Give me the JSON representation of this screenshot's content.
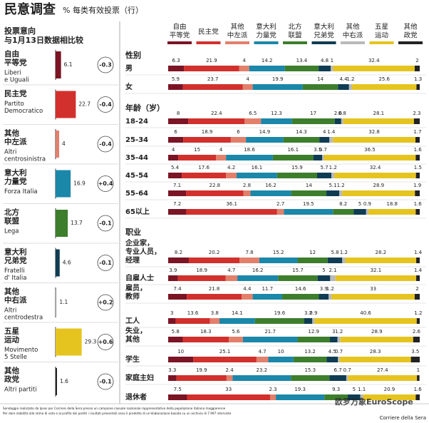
{
  "title": "民意调查",
  "subtitle": "% 每类有效投票（行）",
  "chart_data": [
    {
      "type": "hbar",
      "title": [
        "投票意向",
        "与1月13日数据相比较"
      ],
      "categories": [
        [
          "自由",
          "平等党"
        ],
        [
          "民主党"
        ],
        [
          "其他",
          "中左派"
        ],
        [
          "意大利",
          "力量党"
        ],
        [
          "北方",
          "联盟"
        ],
        [
          "意大利",
          "兄弟党"
        ],
        [
          "其他",
          "中右派"
        ],
        [
          "五星",
          "运动"
        ],
        [
          "其他",
          "政党"
        ]
      ],
      "subtitles": [
        [
          "Liberi",
          "e Uguali"
        ],
        [
          "Partito",
          "Democratico"
        ],
        [
          "Altri",
          "centrosinistra"
        ],
        [
          "Forza Italia"
        ],
        [
          "Lega"
        ],
        [
          "Fratelli",
          "d' Italia"
        ],
        [
          "Altri",
          "centrodestra"
        ],
        [
          "Movimento",
          "5 Stelle"
        ],
        [
          "Altri partiti"
        ]
      ],
      "colors": [
        "#7b1424",
        "#d2302c",
        "#e2806c",
        "#1b87a9",
        "#3d7e2c",
        "#0f3c53",
        "#b9b9b9",
        "#e6c420",
        "#222222"
      ],
      "values": [
        6.1,
        22.7,
        4,
        16.9,
        13.7,
        4.6,
        1.1,
        29.3,
        1.6
      ],
      "changes": [
        -0.3,
        -0.4,
        -0.4,
        {
          "value": 0.4,
          "label": "+0.4"
        },
        -0.1,
        -0.1,
        {
          "value": 0.2,
          "label": "+0.2"
        },
        {
          "value": 0.6,
          "label": "+0.6"
        },
        -0.1
      ]
    },
    {
      "type": "stacked_bar",
      "series": [
        {
          "name": [
            "自由",
            "平等党"
          ],
          "color": "#7b1424"
        },
        {
          "name": [
            "民主党"
          ],
          "color": "#d2302c"
        },
        {
          "name": [
            "其他",
            "中左派"
          ],
          "color": "#e2806c"
        },
        {
          "name": [
            "意大利",
            "力量党"
          ],
          "color": "#1b87a9"
        },
        {
          "name": [
            "北方",
            "联盟"
          ],
          "color": "#3d7e2c"
        },
        {
          "name": [
            "意大利",
            "兄弟党"
          ],
          "color": "#0f3c53"
        },
        {
          "name": [
            "其他",
            "中右派"
          ],
          "color": "#b9b9b9"
        },
        {
          "name": [
            "五星",
            "运动"
          ],
          "color": "#e6c420"
        },
        {
          "name": [
            "其他",
            "政党"
          ],
          "color": "#222222"
        }
      ],
      "groups": [
        {
          "label": "性别",
          "rows": [
            {
              "label": [
                "男"
              ],
              "values": [
                6.3,
                21.9,
                4,
                14.2,
                13.4,
                4.8,
                1,
                32.4,
                2
              ]
            },
            {
              "label": [
                "女"
              ],
              "values": [
                5.9,
                23.7,
                4,
                19.9,
                14,
                4.4,
                1.2,
                25.6,
                1.3
              ]
            }
          ]
        },
        {
          "label": "年龄（岁）",
          "rows": [
            {
              "label": [
                "18-24"
              ],
              "values": [
                8,
                22.4,
                6.5,
                12.3,
                17,
                2.6,
                0.8,
                28.1,
                2.3
              ]
            },
            {
              "label": [
                "25-34"
              ],
              "values": [
                6,
                18.9,
                6,
                14.9,
                14.3,
                4,
                1.4,
                32.8,
                1.7
              ]
            },
            {
              "label": [
                "35-44"
              ],
              "values": [
                4,
                15,
                4,
                18.6,
                16.1,
                3.5,
                0.7,
                36.5,
                1.6
              ]
            },
            {
              "label": [
                "45-54"
              ],
              "values": [
                5.4,
                17.6,
                4.2,
                16.1,
                15.9,
                5.7,
                1.2,
                32.4,
                1.5
              ]
            },
            {
              "label": [
                "55-64"
              ],
              "values": [
                7.1,
                22.8,
                2.8,
                16.2,
                14,
                5.1,
                1.2,
                28.9,
                1.9
              ]
            },
            {
              "label": [
                "65以上"
              ],
              "values": [
                7.2,
                36.1,
                2.7,
                19.5,
                8.2,
                5,
                0.9,
                18.8,
                1.6
              ]
            }
          ]
        },
        {
          "label": "职业",
          "rows": [
            {
              "label": [
                "企业家，",
                "专业人员，",
                "经理"
              ],
              "values": [
                8.2,
                20.2,
                7.8,
                15.2,
                12,
                5.8,
                1.2,
                28.2,
                1.4
              ]
            },
            {
              "label": [
                "自雇人士"
              ],
              "values": [
                3.9,
                18.9,
                4.7,
                16.2,
                15.7,
                5,
                2.1,
                32.1,
                1.4
              ]
            },
            {
              "label": [
                "雇员，",
                "教师"
              ],
              "values": [
                7.4,
                21.8,
                4.4,
                11.7,
                14.6,
                3.9,
                1.2,
                33,
                2
              ]
            },
            {
              "label": [
                "工人"
              ],
              "values": [
                3,
                13.6,
                3.8,
                14.1,
                19.6,
                3.2,
                0.9,
                40.6,
                1.2
              ]
            },
            {
              "label": [
                "失业，",
                "其他"
              ],
              "values": [
                5.8,
                18.3,
                5.6,
                21.7,
                12.9,
                3,
                1.2,
                28.9,
                2.6
              ]
            },
            {
              "label": [
                "学生"
              ],
              "values": [
                10,
                25.1,
                4.7,
                10,
                13.2,
                4.5,
                0.7,
                28.3,
                3.5
              ]
            },
            {
              "label": [
                "家庭主妇"
              ],
              "values": [
                3.3,
                19.9,
                2.4,
                23.2,
                15.3,
                6.7,
                0.7,
                27.4,
                1
              ]
            },
            {
              "label": [
                "退休者"
              ],
              "values": [
                7.5,
                33,
                2.3,
                19.3,
                9.3,
                5,
                1.1,
                20.9,
                1.6
              ]
            }
          ]
        }
      ]
    }
  ],
  "footer": [
    "Sondaggio realizzato da Ipsos per Corriere della Sera presso un campione casuale nazionale rappresentativo della popolazione italiana maggiorenne",
    "Per dare stabilità alle stime di voto e al profilo dei partiti i risultati presentati sono il prodotto di un'elaborazione basata su un archivio di 7.997 interviste"
  ],
  "source": "Corriere della Sera",
  "watermark": "欧罗万象EuroScope"
}
